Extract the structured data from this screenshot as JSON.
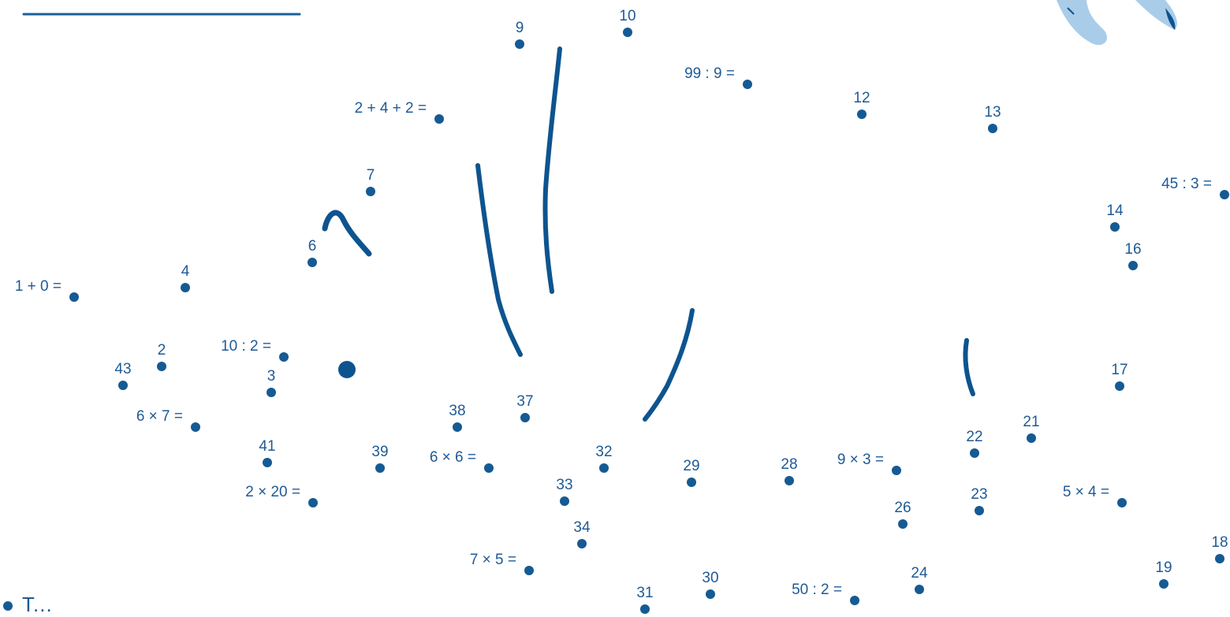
{
  "puzzle": {
    "type": "connect-the-dots",
    "colors": {
      "ink": "#155a93",
      "label": "#1f5a96",
      "decoration": "#a9cde9"
    },
    "points": [
      {
        "id": "p1",
        "label": "1 + 0 ="
      },
      {
        "id": "p2",
        "label": "2"
      },
      {
        "id": "p3",
        "label": "3"
      },
      {
        "id": "p4",
        "label": "4"
      },
      {
        "id": "p5",
        "label": "10 : 2 ="
      },
      {
        "id": "p6",
        "label": "6"
      },
      {
        "id": "p7",
        "label": "7"
      },
      {
        "id": "p8",
        "label": "2 + 4 + 2 ="
      },
      {
        "id": "p9",
        "label": "9"
      },
      {
        "id": "p10",
        "label": "10"
      },
      {
        "id": "p11",
        "label": "99 : 9 ="
      },
      {
        "id": "p12",
        "label": "12"
      },
      {
        "id": "p13",
        "label": "13"
      },
      {
        "id": "p14",
        "label": "14"
      },
      {
        "id": "p15",
        "label": "45 : 3 ="
      },
      {
        "id": "p16",
        "label": "16"
      },
      {
        "id": "p17",
        "label": "17"
      },
      {
        "id": "p18",
        "label": "18"
      },
      {
        "id": "p19",
        "label": "19"
      },
      {
        "id": "p20",
        "label": "5 × 4 ="
      },
      {
        "id": "p21",
        "label": "21"
      },
      {
        "id": "p22",
        "label": "22"
      },
      {
        "id": "p23",
        "label": "23"
      },
      {
        "id": "p24",
        "label": "24"
      },
      {
        "id": "p25",
        "label": "50 : 2 ="
      },
      {
        "id": "p26",
        "label": "26"
      },
      {
        "id": "p27",
        "label": "9 × 3 ="
      },
      {
        "id": "p28",
        "label": "28"
      },
      {
        "id": "p29",
        "label": "29"
      },
      {
        "id": "p30",
        "label": "30"
      },
      {
        "id": "p31",
        "label": "31"
      },
      {
        "id": "p32",
        "label": "32"
      },
      {
        "id": "p33",
        "label": "33"
      },
      {
        "id": "p34",
        "label": "34"
      },
      {
        "id": "p35",
        "label": "7 × 5 ="
      },
      {
        "id": "p36",
        "label": "6 × 6 ="
      },
      {
        "id": "p37",
        "label": "37"
      },
      {
        "id": "p38",
        "label": "38"
      },
      {
        "id": "p39",
        "label": "39"
      },
      {
        "id": "p40",
        "label": "2 × 20 ="
      },
      {
        "id": "p41",
        "label": "41"
      },
      {
        "id": "p42",
        "label": "6 × 7 ="
      },
      {
        "id": "p43",
        "label": "43"
      }
    ]
  },
  "footer": {
    "text": "T..."
  }
}
